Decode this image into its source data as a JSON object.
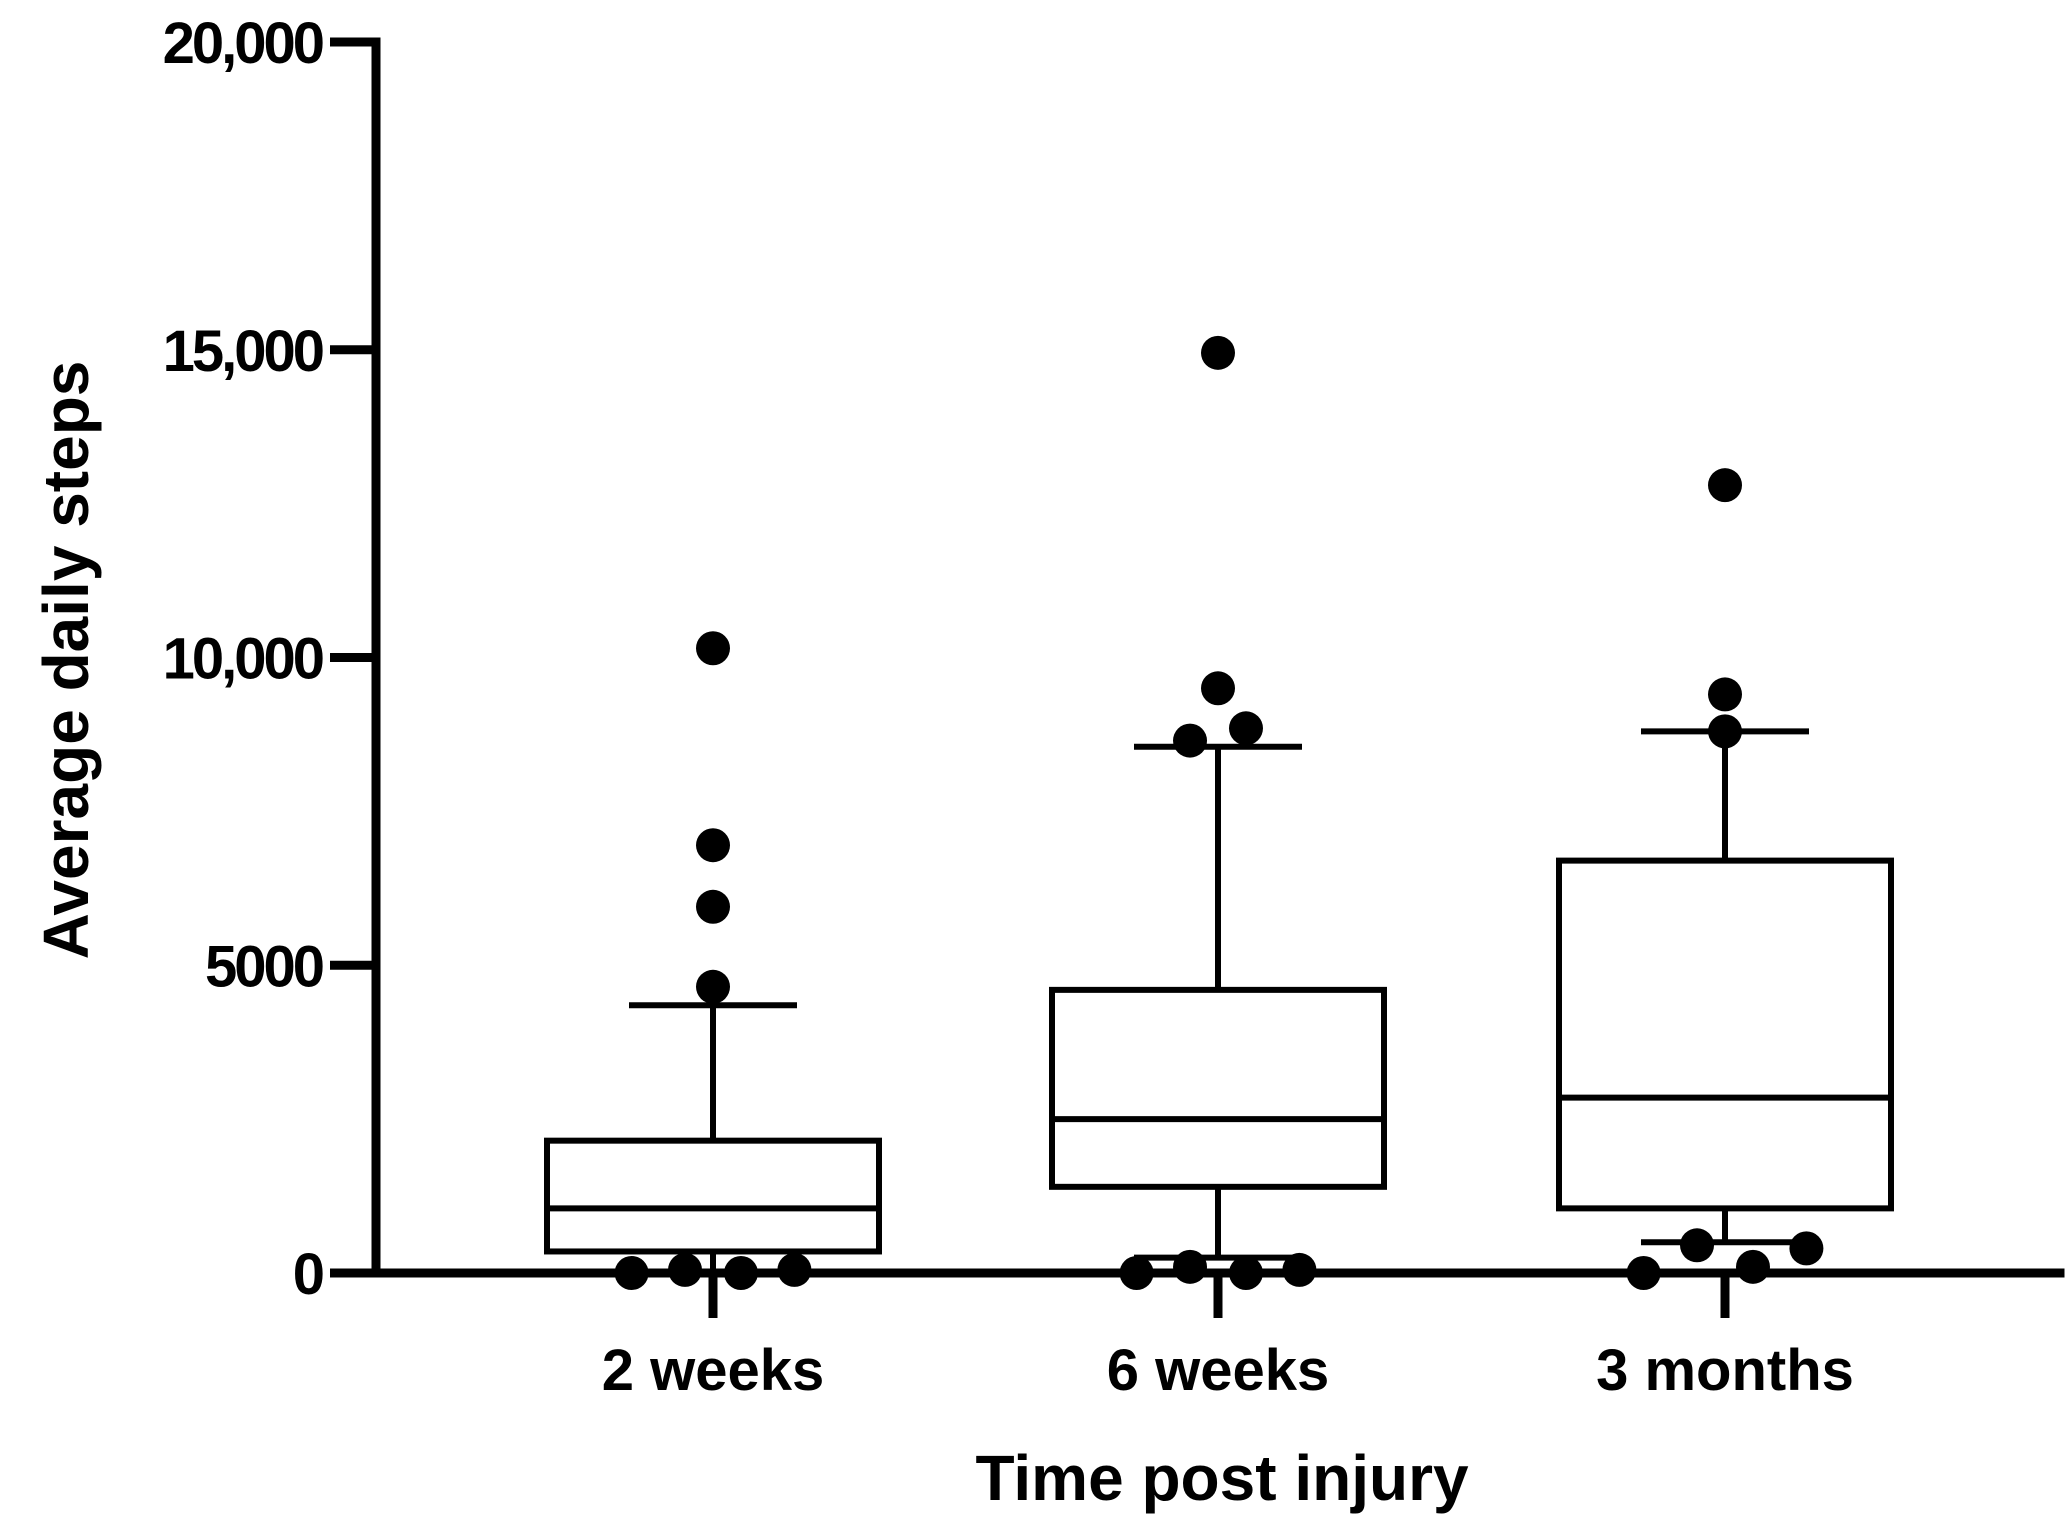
{
  "chart_data": {
    "type": "box",
    "title": "",
    "xlabel": "Time post injury",
    "ylabel": "Average daily steps",
    "ylim": [
      0,
      20000
    ],
    "yticks": [
      0,
      5000,
      10000,
      15000,
      20000
    ],
    "ytick_labels": [
      "0",
      "5000",
      "10,000",
      "15,000",
      "20,000"
    ],
    "categories": [
      "2 weeks",
      "6 weeks",
      "3 months"
    ],
    "boxes": [
      {
        "name": "2 weeks",
        "whisker_low": 0,
        "q1": 350,
        "median": 1050,
        "q3": 2150,
        "whisker_high": 4350
      },
      {
        "name": "6 weeks",
        "whisker_low": 250,
        "q1": 1400,
        "median": 2500,
        "q3": 4600,
        "whisker_high": 8550
      },
      {
        "name": "3 months",
        "whisker_low": 500,
        "q1": 1050,
        "median": 2850,
        "q3": 6700,
        "whisker_high": 8800
      }
    ],
    "outliers": [
      {
        "category": "2 weeks",
        "jitter": -0.32,
        "value": 0
      },
      {
        "category": "2 weeks",
        "jitter": -0.11,
        "value": 50
      },
      {
        "category": "2 weeks",
        "jitter": 0.11,
        "value": 0
      },
      {
        "category": "2 weeks",
        "jitter": 0.32,
        "value": 50
      },
      {
        "category": "2 weeks",
        "jitter": 0.0,
        "value": 4650
      },
      {
        "category": "2 weeks",
        "jitter": 0.0,
        "value": 5950
      },
      {
        "category": "2 weeks",
        "jitter": 0.0,
        "value": 6950
      },
      {
        "category": "2 weeks",
        "jitter": 0.0,
        "value": 10150
      },
      {
        "category": "6 weeks",
        "jitter": -0.32,
        "value": 0
      },
      {
        "category": "6 weeks",
        "jitter": -0.11,
        "value": 100
      },
      {
        "category": "6 weeks",
        "jitter": 0.11,
        "value": 0
      },
      {
        "category": "6 weeks",
        "jitter": 0.32,
        "value": 50
      },
      {
        "category": "6 weeks",
        "jitter": -0.11,
        "value": 8650
      },
      {
        "category": "6 weeks",
        "jitter": 0.11,
        "value": 8850
      },
      {
        "category": "6 weeks",
        "jitter": 0.0,
        "value": 9500
      },
      {
        "category": "6 weeks",
        "jitter": 0.0,
        "value": 14950
      },
      {
        "category": "3 months",
        "jitter": -0.32,
        "value": 0
      },
      {
        "category": "3 months",
        "jitter": -0.11,
        "value": 450
      },
      {
        "category": "3 months",
        "jitter": 0.11,
        "value": 100
      },
      {
        "category": "3 months",
        "jitter": 0.32,
        "value": 400
      },
      {
        "category": "3 months",
        "jitter": 0.0,
        "value": 8800
      },
      {
        "category": "3 months",
        "jitter": 0.0,
        "value": 9400
      },
      {
        "category": "3 months",
        "jitter": 0.0,
        "value": 12800
      }
    ]
  }
}
